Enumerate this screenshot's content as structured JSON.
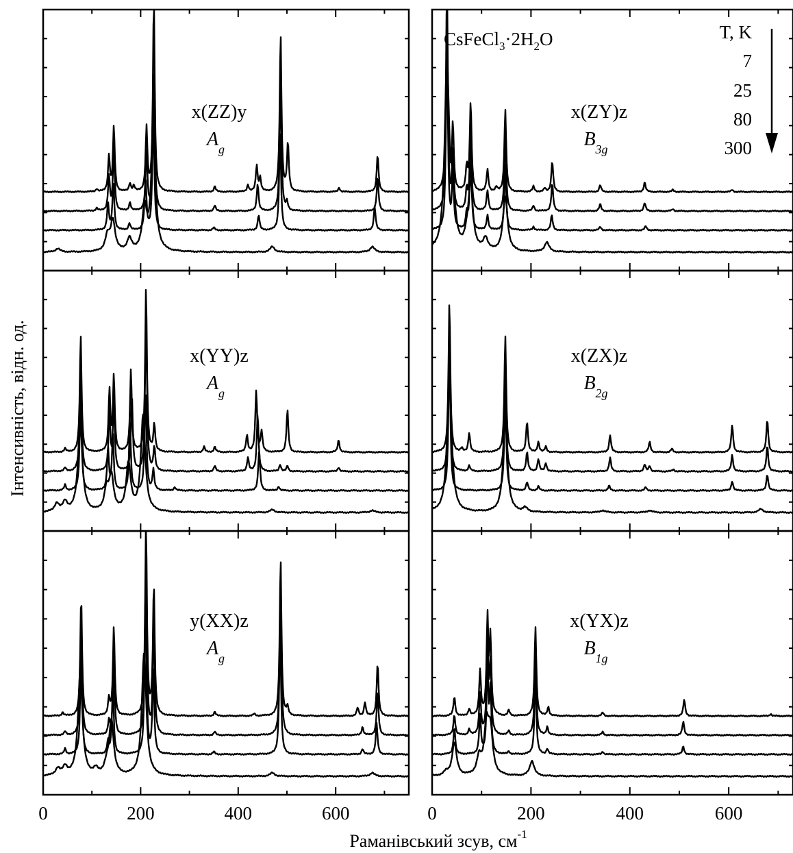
{
  "figure": {
    "compound_parts": [
      "CsFeCl",
      "3",
      "·2H",
      "2",
      "O"
    ],
    "xlabel": "Раманівський зсув, см",
    "xlabel_sup": "-1",
    "ylabel": "Інтенсивність, відн. од.",
    "legend": {
      "title": "T, K",
      "temps": [
        "7",
        "25",
        "80",
        "300"
      ]
    }
  },
  "chart_data": [
    {
      "type": "line",
      "panel": "top-left",
      "geometry": "x(ZZ)y",
      "sym": "A",
      "sym_sub": "g",
      "xlim": [
        0,
        750
      ],
      "xticks": [
        0,
        200,
        400,
        600
      ],
      "series": [
        {
          "name": "7",
          "peaks": [
            [
              110,
              4
            ],
            [
              135,
              52
            ],
            [
              145,
              95
            ],
            [
              178,
              12
            ],
            [
              186,
              8
            ],
            [
              212,
              92
            ],
            [
              227,
              280
            ],
            [
              352,
              8
            ],
            [
              420,
              10
            ],
            [
              438,
              38
            ],
            [
              445,
              20
            ],
            [
              487,
              230
            ],
            [
              502,
              70
            ],
            [
              607,
              6
            ],
            [
              686,
              55
            ]
          ]
        },
        {
          "name": "25",
          "peaks": [
            [
              110,
              4
            ],
            [
              135,
              50
            ],
            [
              145,
              88
            ],
            [
              178,
              12
            ],
            [
              212,
              85
            ],
            [
              227,
              210
            ],
            [
              352,
              8
            ],
            [
              440,
              40
            ],
            [
              487,
              190
            ],
            [
              500,
              12
            ],
            [
              686,
              50
            ]
          ]
        },
        {
          "name": "80",
          "peaks": [
            [
              133,
              38
            ],
            [
              144,
              72
            ],
            [
              177,
              10
            ],
            [
              210,
              75
            ],
            [
              226,
              180
            ],
            [
              350,
              4
            ],
            [
              442,
              22
            ],
            [
              486,
              140
            ],
            [
              680,
              35
            ]
          ]
        },
        {
          "name": "300",
          "peaks": [
            [
              30,
              5
            ],
            [
              132,
              22
            ],
            [
              143,
              45
            ],
            [
              177,
              18
            ],
            [
              208,
              60
            ],
            [
              226,
              170
            ],
            [
              470,
              8
            ],
            [
              675,
              8
            ]
          ]
        }
      ]
    },
    {
      "type": "line",
      "panel": "top-right",
      "geometry": "x(ZY)z",
      "sym": "B",
      "sym_sub": "3g",
      "xlim": [
        0,
        730
      ],
      "xticks": [
        0,
        200,
        400,
        600
      ],
      "series": [
        {
          "name": "7",
          "peaks": [
            [
              30,
              300
            ],
            [
              42,
              95
            ],
            [
              70,
              35
            ],
            [
              78,
              130
            ],
            [
              112,
              32
            ],
            [
              130,
              6
            ],
            [
              148,
              120
            ],
            [
              205,
              8
            ],
            [
              228,
              5
            ],
            [
              243,
              45
            ],
            [
              340,
              10
            ],
            [
              430,
              14
            ],
            [
              487,
              3
            ],
            [
              607,
              3
            ]
          ]
        },
        {
          "name": "25",
          "peaks": [
            [
              30,
              290
            ],
            [
              42,
              85
            ],
            [
              70,
              30
            ],
            [
              78,
              120
            ],
            [
              112,
              30
            ],
            [
              148,
              110
            ],
            [
              205,
              8
            ],
            [
              243,
              40
            ],
            [
              340,
              10
            ],
            [
              430,
              12
            ],
            [
              487,
              3
            ]
          ]
        },
        {
          "name": "80",
          "peaks": [
            [
              30,
              280
            ],
            [
              42,
              80
            ],
            [
              70,
              24
            ],
            [
              78,
              115
            ],
            [
              112,
              22
            ],
            [
              148,
              95
            ],
            [
              205,
              5
            ],
            [
              242,
              22
            ],
            [
              340,
              5
            ],
            [
              432,
              6
            ]
          ]
        },
        {
          "name": "300",
          "peaks": [
            [
              30,
              270
            ],
            [
              42,
              70
            ],
            [
              70,
              12
            ],
            [
              78,
              95
            ],
            [
              108,
              18
            ],
            [
              148,
              80
            ],
            [
              232,
              14
            ]
          ]
        }
      ]
    },
    {
      "type": "line",
      "panel": "middle-left",
      "geometry": "x(YY)z",
      "sym": "A",
      "sym_sub": "g",
      "xlim": [
        0,
        750
      ],
      "xticks": [
        0,
        200,
        400,
        600
      ],
      "series": [
        {
          "name": "7",
          "peaks": [
            [
              45,
              5
            ],
            [
              77,
              170
            ],
            [
              136,
              90
            ],
            [
              145,
              110
            ],
            [
              180,
              120
            ],
            [
              211,
              240
            ],
            [
              228,
              40
            ],
            [
              330,
              8
            ],
            [
              352,
              8
            ],
            [
              418,
              25
            ],
            [
              437,
              90
            ],
            [
              448,
              30
            ],
            [
              501,
              62
            ],
            [
              606,
              18
            ]
          ]
        },
        {
          "name": "25",
          "peaks": [
            [
              45,
              5
            ],
            [
              77,
              165
            ],
            [
              136,
              85
            ],
            [
              145,
              100
            ],
            [
              182,
              110
            ],
            [
              211,
              230
            ],
            [
              228,
              35
            ],
            [
              352,
              8
            ],
            [
              420,
              20
            ],
            [
              440,
              85
            ],
            [
              486,
              10
            ],
            [
              501,
              8
            ],
            [
              606,
              6
            ]
          ]
        },
        {
          "name": "80",
          "peaks": [
            [
              45,
              8
            ],
            [
              77,
              150
            ],
            [
              133,
              60
            ],
            [
              143,
              80
            ],
            [
              178,
              100
            ],
            [
              210,
              150
            ],
            [
              226,
              30
            ],
            [
              270,
              5
            ],
            [
              443,
              60
            ],
            [
              483,
              6
            ]
          ]
        },
        {
          "name": "300",
          "peaks": [
            [
              28,
              12
            ],
            [
              45,
              14
            ],
            [
              76,
              130
            ],
            [
              130,
              30
            ],
            [
              140,
              50
            ],
            [
              175,
              70
            ],
            [
              205,
              140
            ],
            [
              470,
              4
            ],
            [
              675,
              3
            ]
          ]
        }
      ]
    },
    {
      "type": "line",
      "panel": "middle-right",
      "geometry": "x(ZX)z",
      "sym": "B",
      "sym_sub": "2g",
      "xlim": [
        0,
        730
      ],
      "xticks": [
        0,
        200,
        400,
        600
      ],
      "series": [
        {
          "name": "7",
          "peaks": [
            [
              35,
              220
            ],
            [
              60,
              5
            ],
            [
              75,
              28
            ],
            [
              148,
              170
            ],
            [
              192,
              45
            ],
            [
              215,
              15
            ],
            [
              230,
              8
            ],
            [
              360,
              25
            ],
            [
              440,
              15
            ],
            [
              485,
              5
            ],
            [
              607,
              40
            ],
            [
              678,
              48
            ]
          ]
        },
        {
          "name": "25",
          "peaks": [
            [
              35,
              215
            ],
            [
              75,
              8
            ],
            [
              148,
              160
            ],
            [
              192,
              28
            ],
            [
              215,
              18
            ],
            [
              230,
              12
            ],
            [
              360,
              20
            ],
            [
              430,
              10
            ],
            [
              440,
              8
            ],
            [
              488,
              3
            ],
            [
              607,
              24
            ],
            [
              678,
              38
            ]
          ]
        },
        {
          "name": "80",
          "peaks": [
            [
              35,
              210
            ],
            [
              148,
              150
            ],
            [
              192,
              12
            ],
            [
              215,
              6
            ],
            [
              358,
              7
            ],
            [
              432,
              5
            ],
            [
              607,
              14
            ],
            [
              678,
              24
            ]
          ]
        },
        {
          "name": "300",
          "peaks": [
            [
              35,
              200
            ],
            [
              148,
              130
            ],
            [
              188,
              6
            ],
            [
              345,
              3
            ],
            [
              440,
              3
            ],
            [
              665,
              5
            ]
          ]
        }
      ]
    },
    {
      "type": "line",
      "panel": "bottom-left",
      "geometry": "y(XX)z",
      "sym": "A",
      "sym_sub": "g",
      "xlim": [
        0,
        750
      ],
      "xticks": [
        0,
        200,
        400,
        600
      ],
      "series": [
        {
          "name": "7",
          "peaks": [
            [
              40,
              5
            ],
            [
              78,
              175
            ],
            [
              135,
              25
            ],
            [
              145,
              130
            ],
            [
              211,
              280
            ],
            [
              227,
              190
            ],
            [
              352,
              6
            ],
            [
              433,
              3
            ],
            [
              487,
              230
            ],
            [
              501,
              12
            ],
            [
              645,
              12
            ],
            [
              660,
              20
            ],
            [
              686,
              78
            ]
          ]
        },
        {
          "name": "25",
          "peaks": [
            [
              45,
              5
            ],
            [
              78,
              170
            ],
            [
              135,
              20
            ],
            [
              145,
              110
            ],
            [
              211,
              260
            ],
            [
              227,
              160
            ],
            [
              352,
              5
            ],
            [
              487,
              210
            ],
            [
              655,
              12
            ],
            [
              686,
              65
            ]
          ]
        },
        {
          "name": "80",
          "peaks": [
            [
              45,
              8
            ],
            [
              78,
              160
            ],
            [
              133,
              18
            ],
            [
              143,
              100
            ],
            [
              210,
              240
            ],
            [
              226,
              120
            ],
            [
              350,
              4
            ],
            [
              486,
              180
            ],
            [
              655,
              8
            ],
            [
              684,
              45
            ]
          ]
        },
        {
          "name": "300",
          "peaks": [
            [
              30,
              10
            ],
            [
              45,
              12
            ],
            [
              76,
              150
            ],
            [
              108,
              8
            ],
            [
              130,
              12
            ],
            [
              140,
              80
            ],
            [
              207,
              180
            ],
            [
              470,
              5
            ],
            [
              675,
              5
            ]
          ]
        }
      ]
    },
    {
      "type": "line",
      "panel": "bottom-right",
      "geometry": "x(YX)z",
      "sym": "B",
      "sym_sub": "1g",
      "xlim": [
        0,
        730
      ],
      "xticks": [
        0,
        200,
        400,
        600
      ],
      "series": [
        {
          "name": "7",
          "peaks": [
            [
              45,
              28
            ],
            [
              75,
              10
            ],
            [
              97,
              65
            ],
            [
              112,
              140
            ],
            [
              118,
              110
            ],
            [
              155,
              8
            ],
            [
              209,
              130
            ],
            [
              235,
              13
            ],
            [
              345,
              5
            ],
            [
              510,
              24
            ],
            [
              685,
              3
            ]
          ]
        },
        {
          "name": "25",
          "peaks": [
            [
              45,
              30
            ],
            [
              75,
              8
            ],
            [
              97,
              60
            ],
            [
              112,
              130
            ],
            [
              118,
              100
            ],
            [
              155,
              6
            ],
            [
              209,
              120
            ],
            [
              233,
              12
            ],
            [
              345,
              5
            ],
            [
              508,
              20
            ]
          ]
        },
        {
          "name": "80",
          "peaks": [
            [
              45,
              40
            ],
            [
              97,
              55
            ],
            [
              112,
              120
            ],
            [
              118,
              90
            ],
            [
              155,
              4
            ],
            [
              209,
              115
            ],
            [
              233,
              8
            ],
            [
              345,
              4
            ],
            [
              508,
              12
            ]
          ]
        },
        {
          "name": "300",
          "peaks": [
            [
              28,
              5
            ],
            [
              45,
              48
            ],
            [
              95,
              25
            ],
            [
              110,
              70
            ],
            [
              118,
              60
            ],
            [
              202,
              22
            ]
          ]
        }
      ]
    }
  ]
}
